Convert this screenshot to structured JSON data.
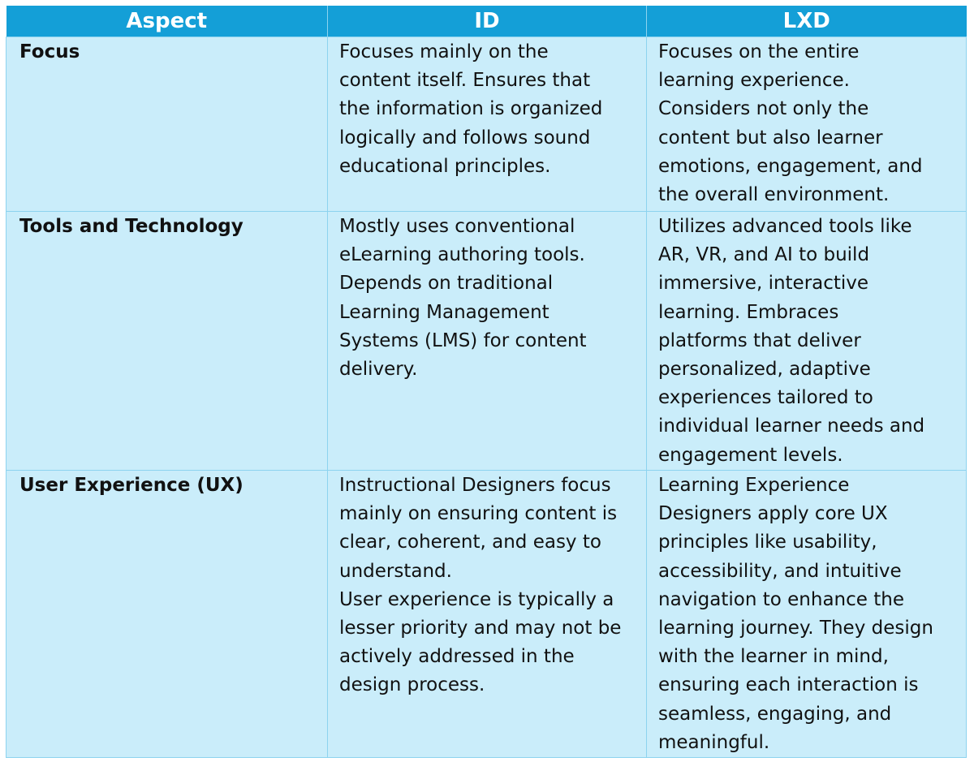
{
  "table": {
    "headers": [
      "Aspect",
      "ID",
      "LXD"
    ],
    "rows": [
      {
        "aspect": "Focus",
        "id": [
          "Focuses mainly on the",
          "content itself. Ensures that",
          "the information is organized",
          "logically and follows sound",
          "educational principles."
        ],
        "lxd": [
          "Focuses on the entire",
          "learning experience.",
          "Considers not only the",
          "content but also learner",
          "emotions, engagement, and",
          "the overall environment."
        ]
      },
      {
        "aspect": "Tools and Technology",
        "id": [
          "Mostly uses conventional",
          "eLearning authoring tools.",
          "Depends on traditional",
          "Learning Management",
          "Systems (LMS) for content",
          "delivery."
        ],
        "lxd": [
          "Utilizes advanced tools like",
          "AR, VR, and AI to build",
          "immersive, interactive",
          "learning. Embraces",
          "platforms that deliver",
          "personalized, adaptive",
          "experiences tailored to",
          "individual learner needs and",
          "engagement levels."
        ]
      },
      {
        "aspect": "User Experience (UX)",
        "id": [
          "Instructional Designers focus",
          "mainly on ensuring content is",
          "clear, coherent, and easy to",
          "understand.",
          "User experience is typically a",
          "lesser priority and may not be",
          "actively addressed in the",
          "design process."
        ],
        "lxd": [
          "Learning Experience",
          "Designers apply core UX",
          "principles like usability,",
          "accessibility, and intuitive",
          "navigation to enhance the",
          "learning journey. They design",
          "with the learner in mind,",
          "ensuring each interaction is",
          "seamless, engaging, and",
          "meaningful."
        ]
      }
    ]
  },
  "colors": {
    "header_bg": "#149fd7",
    "cell_bg": "#caedfa",
    "border": "#8dd3ef"
  }
}
